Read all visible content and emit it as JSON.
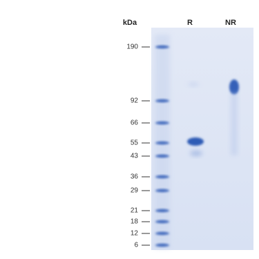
{
  "header": {
    "unit": "kDa"
  },
  "lanes": [
    "R",
    "NR"
  ],
  "markers": [
    "190",
    "92",
    "66",
    "55",
    "43",
    "36",
    "29",
    "21",
    "18",
    "12",
    "6"
  ]
}
